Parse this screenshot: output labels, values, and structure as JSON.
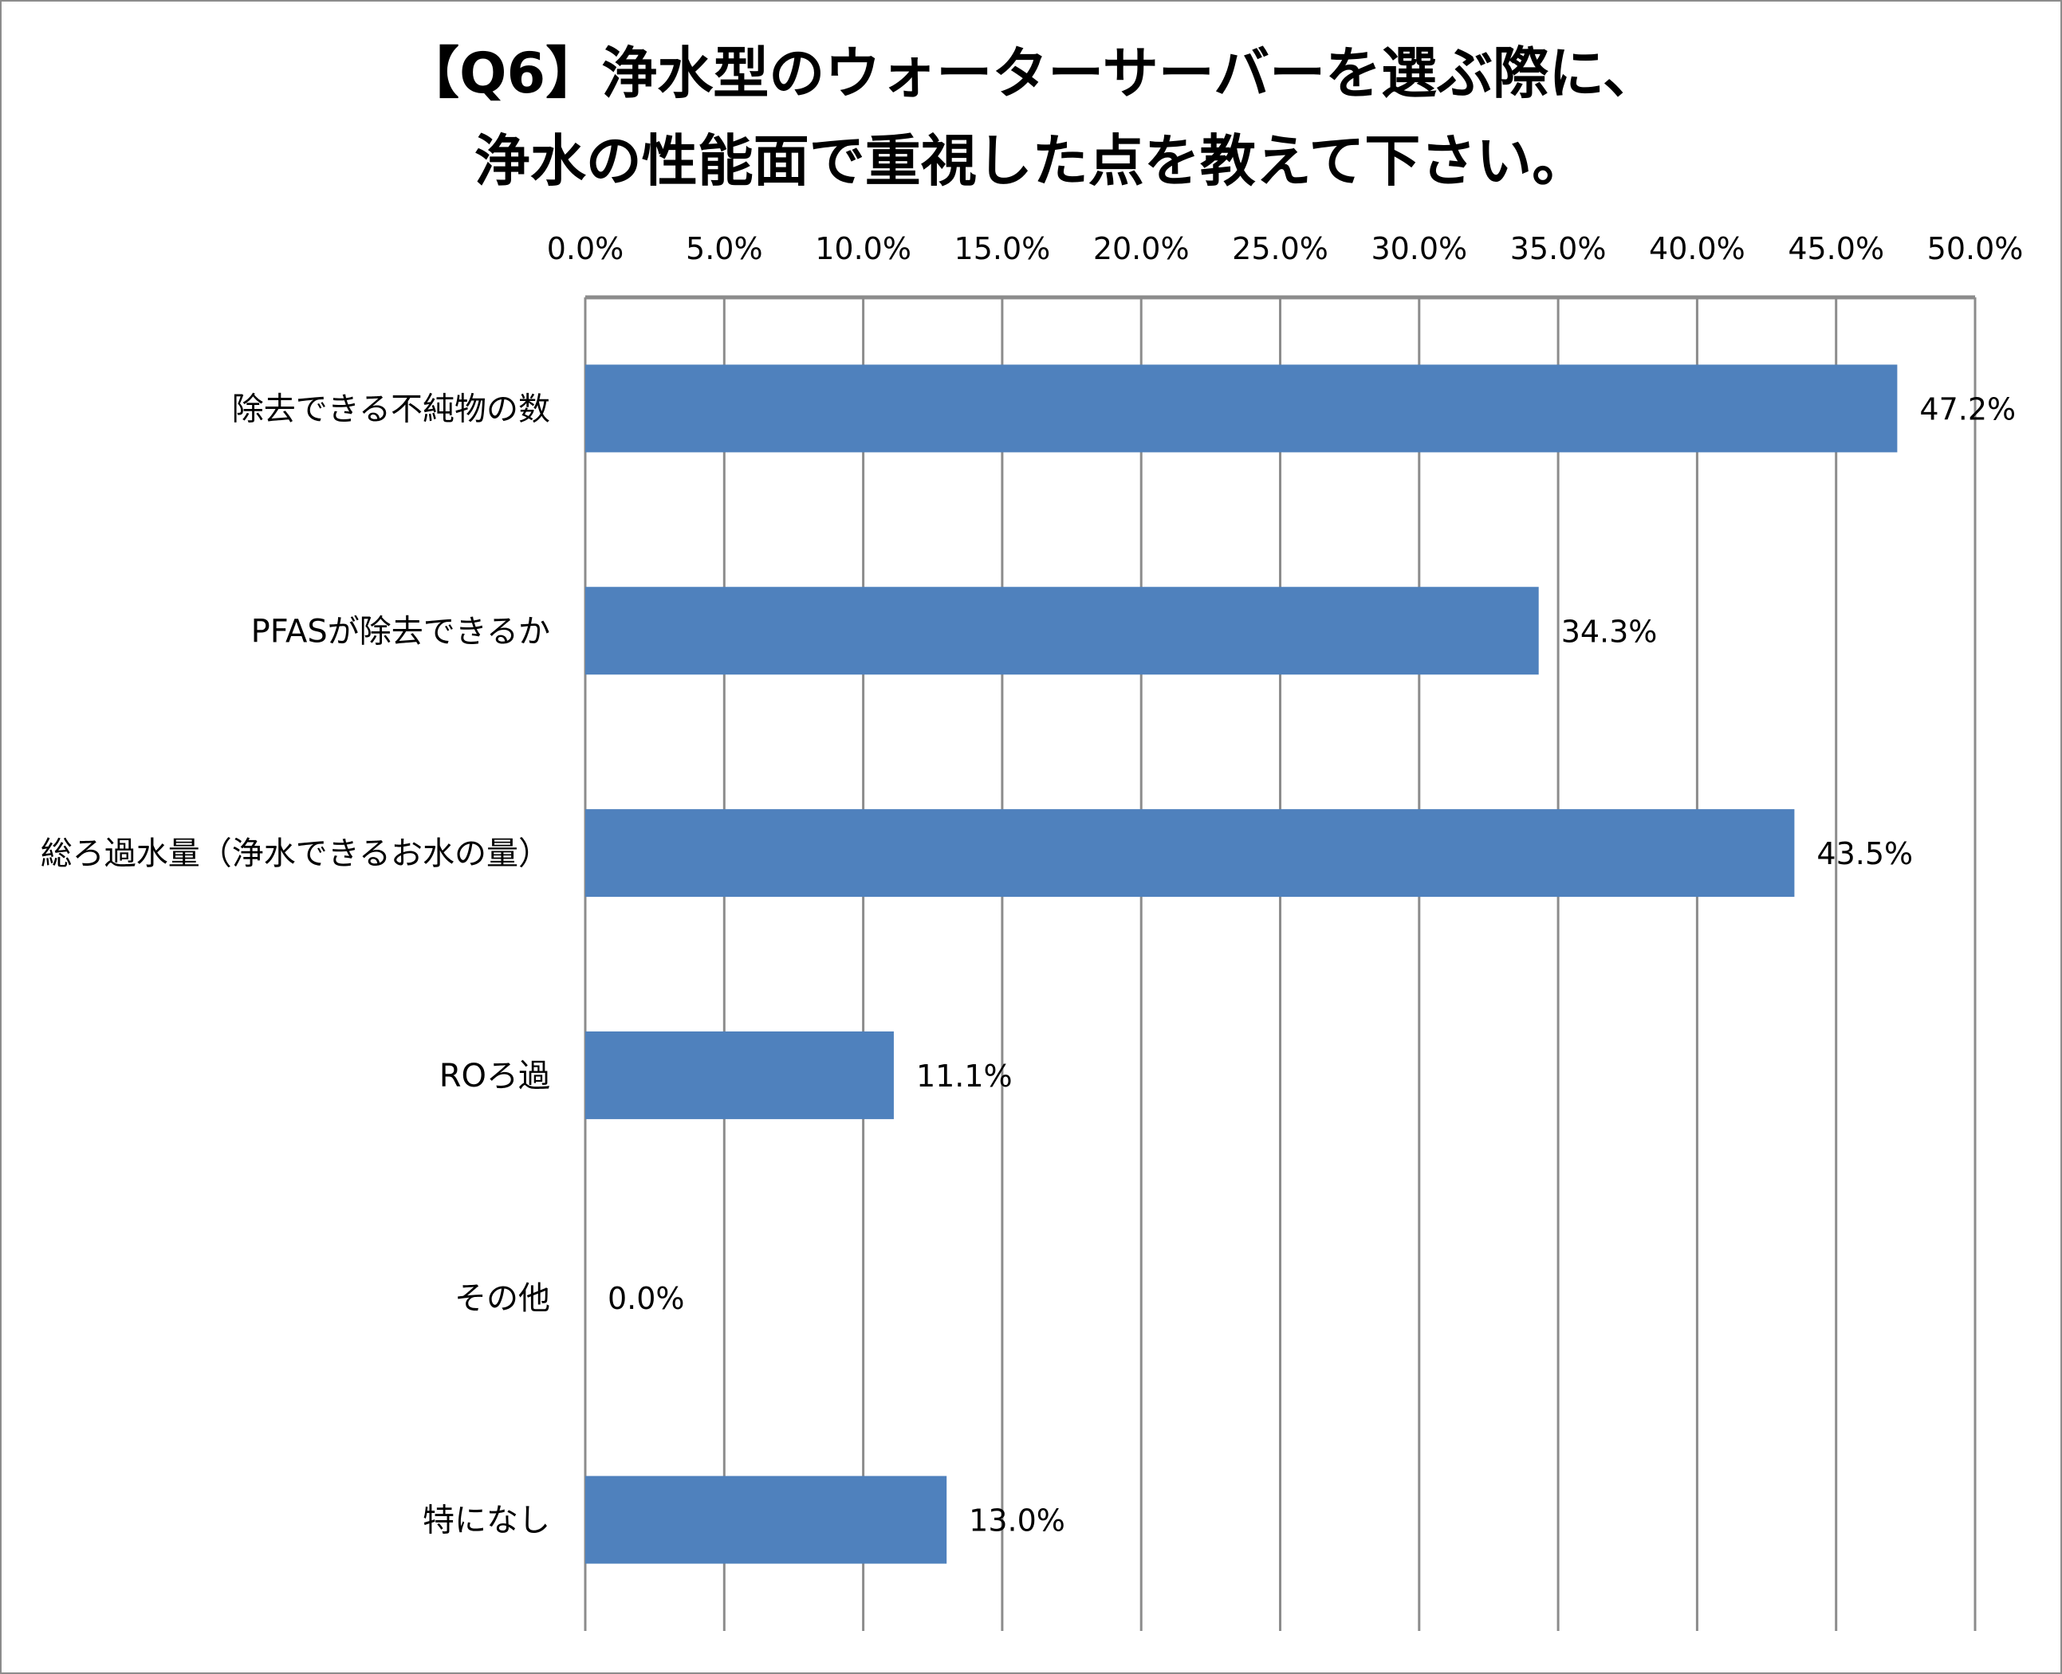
{
  "chart_data": {
    "type": "bar",
    "orientation": "horizontal",
    "title_lines": [
      "【Q6】浄水型のウォーターサーバーを選ぶ際に、",
      "浄水の性能面で重視した点を教えて下さい。"
    ],
    "categories": [
      "除去できる不純物の数",
      "PFASが除去できるか",
      "総ろ過水量（浄水できるお水の量）",
      "ROろ過",
      "その他",
      "特になし"
    ],
    "values": [
      47.2,
      34.3,
      43.5,
      11.1,
      0.0,
      13.0
    ],
    "data_labels": [
      "47.2%",
      "34.3%",
      "43.5%",
      "11.1%",
      "0.0%",
      "13.0%"
    ],
    "tick_labels": [
      "0.0%",
      "5.0%",
      "10.0%",
      "15.0%",
      "20.0%",
      "25.0%",
      "30.0%",
      "35.0%",
      "40.0%",
      "45.0%",
      "50.0%"
    ],
    "xlim": [
      0,
      50
    ],
    "x_axis_position": "top",
    "grid": true,
    "xlabel": "",
    "ylabel": "",
    "colors": {
      "bar": "#4f81bd",
      "grid": "#8c8c8c"
    }
  }
}
